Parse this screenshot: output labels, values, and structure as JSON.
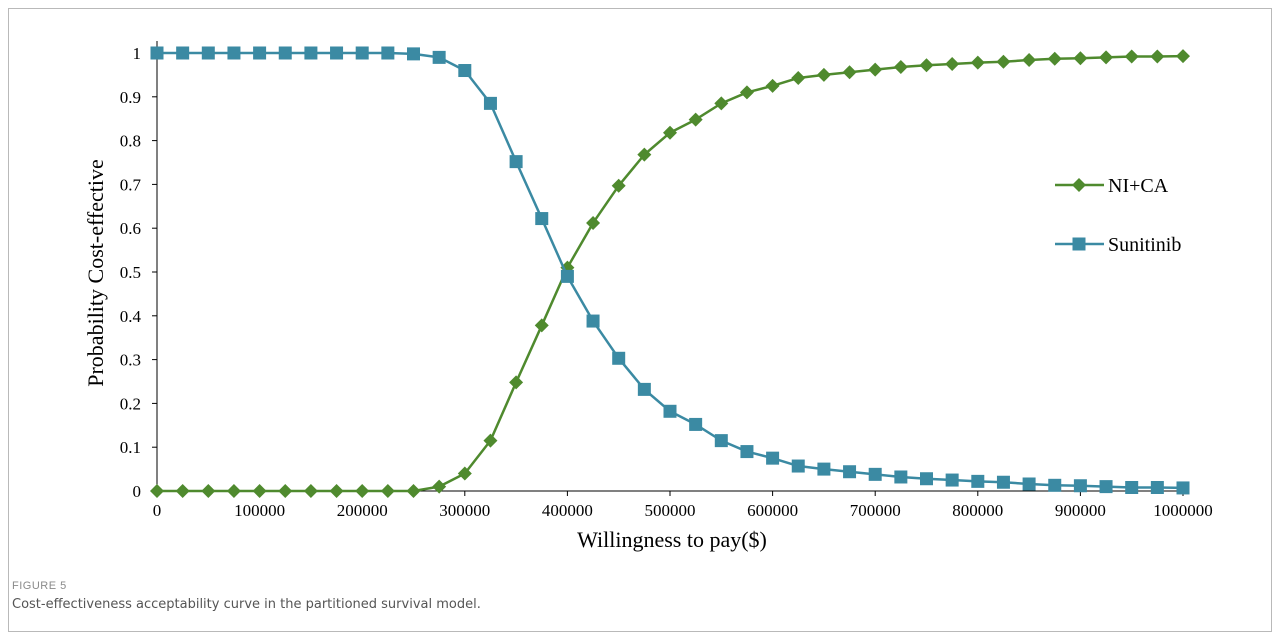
{
  "figure": {
    "label": "FIGURE 5",
    "caption": "Cost-effectiveness acceptability curve in the partitioned survival model."
  },
  "chart_data": {
    "type": "line",
    "title": "",
    "xlabel": "Willingness to pay($)",
    "ylabel": "Probability Cost-effective",
    "xlim": [
      0,
      1000000
    ],
    "ylim": [
      0,
      1
    ],
    "xticks": [
      0,
      100000,
      200000,
      300000,
      400000,
      500000,
      600000,
      700000,
      800000,
      900000,
      1000000
    ],
    "xtick_labels": [
      "0",
      "100000",
      "200000",
      "300000",
      "400000",
      "500000",
      "600000",
      "700000",
      "800000",
      "900000",
      "1000000"
    ],
    "yticks": [
      0,
      0.1,
      0.2,
      0.3,
      0.4,
      0.5,
      0.6,
      0.7,
      0.8,
      0.9,
      1
    ],
    "ytick_labels": [
      "0",
      "0.1",
      "0.2",
      "0.3",
      "0.4",
      "0.5",
      "0.6",
      "0.7",
      "0.8",
      "0.9",
      "1"
    ],
    "grid": false,
    "legend_position": "right",
    "x": [
      0,
      25000,
      50000,
      75000,
      100000,
      125000,
      150000,
      175000,
      200000,
      225000,
      250000,
      275000,
      300000,
      325000,
      350000,
      375000,
      400000,
      425000,
      450000,
      475000,
      500000,
      525000,
      550000,
      575000,
      600000,
      625000,
      650000,
      675000,
      700000,
      725000,
      750000,
      775000,
      800000,
      825000,
      850000,
      875000,
      900000,
      925000,
      950000,
      975000,
      1000000
    ],
    "series": [
      {
        "name": "NI+CA",
        "color": "#4f8a2e",
        "marker": "diamond",
        "values": [
          0,
          0,
          0,
          0,
          0,
          0,
          0,
          0,
          0,
          0,
          0,
          0.01,
          0.04,
          0.115,
          0.248,
          0.378,
          0.51,
          0.612,
          0.697,
          0.768,
          0.818,
          0.848,
          0.885,
          0.91,
          0.925,
          0.943,
          0.95,
          0.956,
          0.962,
          0.968,
          0.972,
          0.975,
          0.978,
          0.98,
          0.984,
          0.987,
          0.988,
          0.99,
          0.992,
          0.992,
          0.993
        ]
      },
      {
        "name": "Sunitinib",
        "color": "#3b8aa3",
        "marker": "square",
        "values": [
          1,
          1,
          1,
          1,
          1,
          1,
          1,
          1,
          1,
          1,
          0.998,
          0.99,
          0.96,
          0.885,
          0.752,
          0.622,
          0.49,
          0.388,
          0.303,
          0.232,
          0.182,
          0.152,
          0.115,
          0.09,
          0.075,
          0.057,
          0.05,
          0.044,
          0.038,
          0.032,
          0.028,
          0.025,
          0.022,
          0.02,
          0.016,
          0.013,
          0.012,
          0.01,
          0.008,
          0.008,
          0.007
        ]
      }
    ]
  }
}
